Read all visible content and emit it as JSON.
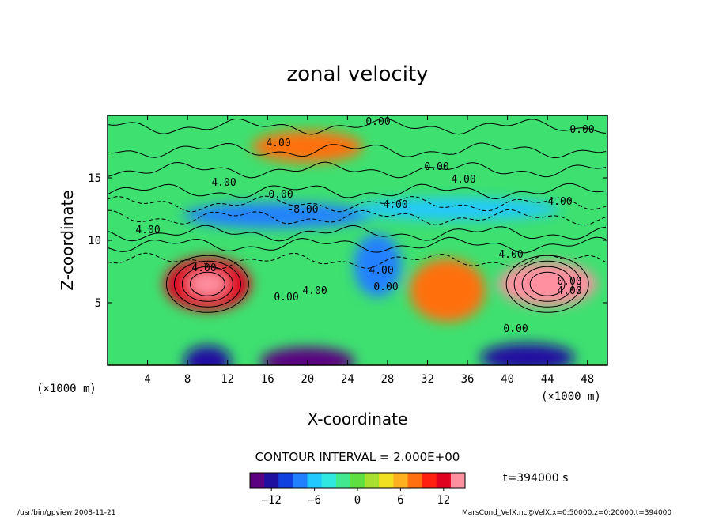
{
  "chart_data": {
    "type": "heatmap",
    "title": "zonal velocity",
    "xlabel": "X-coordinate",
    "ylabel": "Z-coordinate",
    "x_unit_note": "(×1000 m)",
    "y_unit_note": "(×1000 m)",
    "xlim": [
      0,
      50
    ],
    "ylim": [
      0,
      20
    ],
    "x_ticks": [
      4,
      8,
      12,
      16,
      20,
      24,
      28,
      32,
      36,
      40,
      44,
      48
    ],
    "y_ticks": [
      5,
      10,
      15
    ],
    "contour_interval_text": "CONTOUR INTERVAL = 2.000E+00",
    "time_text": "t=394000 s",
    "colorbar": {
      "min": -15,
      "max": 15,
      "ticks": [
        -12,
        -6,
        0,
        6,
        12
      ],
      "colors": [
        "#5a0080",
        "#2010a0",
        "#1040e0",
        "#2080ff",
        "#20c8ff",
        "#30e8e0",
        "#40e890",
        "#60e040",
        "#a8e030",
        "#f0e020",
        "#ffb020",
        "#ff7010",
        "#ff2010",
        "#e00020",
        "#ff90a0"
      ]
    },
    "contour_labels": [
      "0.00",
      "0.00",
      "4.00",
      "0.00",
      "4.00",
      "4.00",
      "0.00",
      "-8.00",
      "4.00",
      "4.00",
      "4.00",
      "4.00",
      "4.00",
      "0.00",
      "4.00",
      "0.00",
      "4.00",
      "0.00",
      "4.00",
      "0.00"
    ],
    "field_features": [
      {
        "x": 10,
        "z": 6.5,
        "value": 12,
        "desc": "jet core"
      },
      {
        "x": 44,
        "z": 6.5,
        "value": 15,
        "desc": "jet core"
      },
      {
        "x": 34,
        "z": 6,
        "value": 7
      },
      {
        "x": 20,
        "z": 17.5,
        "value": 7
      },
      {
        "x": 17,
        "z": 12,
        "value": -9
      },
      {
        "x": 35,
        "z": 12.5,
        "value": -6
      },
      {
        "x": 27,
        "z": 8,
        "value": -8
      },
      {
        "x": 20,
        "z": 0.3,
        "value": -14
      },
      {
        "x": 42,
        "z": 0.6,
        "value": -13
      },
      {
        "x": 10,
        "z": 0.3,
        "value": -12
      }
    ]
  },
  "footer": {
    "left": "/usr/bin/gpview  2008-11-21",
    "right": "MarsCond_VelX.nc@VelX,x=0:50000,z=0:20000,t=394000"
  }
}
